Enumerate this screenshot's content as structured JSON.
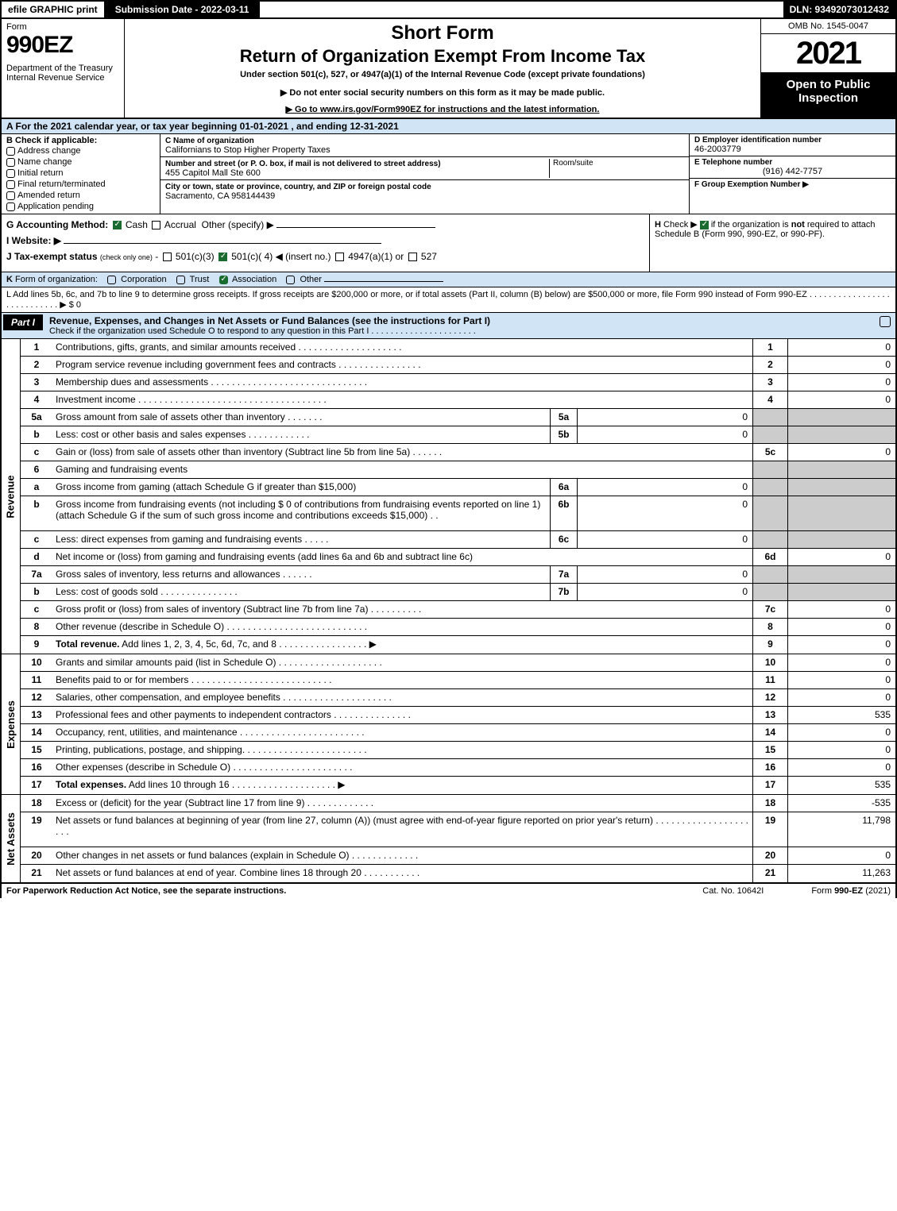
{
  "topbar": {
    "efile": "efile GRAPHIC print",
    "submission": "Submission Date - 2022-03-11",
    "dln": "DLN: 93492073012432"
  },
  "header": {
    "form_word": "Form",
    "form_num": "990EZ",
    "dept": "Department of the Treasury\nInternal Revenue Service",
    "short": "Short Form",
    "return": "Return of Organization Exempt From Income Tax",
    "under": "Under section 501(c), 527, or 4947(a)(1) of the Internal Revenue Code (except private foundations)",
    "donot": "▶ Do not enter social security numbers on this form as it may be made public.",
    "goto": "▶ Go to www.irs.gov/Form990EZ for instructions and the latest information.",
    "omb": "OMB No. 1545-0047",
    "year": "2021",
    "open": "Open to Public Inspection"
  },
  "row_a": "A  For the 2021 calendar year, or tax year beginning 01-01-2021 , and ending 12-31-2021",
  "b": {
    "hdr": "B  Check if applicable:",
    "items": [
      "Address change",
      "Name change",
      "Initial return",
      "Final return/terminated",
      "Amended return",
      "Application pending"
    ]
  },
  "c": {
    "name_label": "C Name of organization",
    "name": "Californians to Stop Higher Property Taxes",
    "street_label": "Number and street (or P. O. box, if mail is not delivered to street address)",
    "street": "455 Capitol Mall Ste 600",
    "room_label": "Room/suite",
    "city_label": "City or town, state or province, country, and ZIP or foreign postal code",
    "city": "Sacramento, CA  958144439"
  },
  "def": {
    "d_label": "D Employer identification number",
    "d_val": "46-2003779",
    "e_label": "E Telephone number",
    "e_val": "(916) 442-7757",
    "f_label": "F Group Exemption Number  ▶"
  },
  "g": {
    "label": "G Accounting Method:",
    "cash": "Cash",
    "accrual": "Accrual",
    "other": "Other (specify) ▶"
  },
  "h": "H  Check ▶         if the organization is not required to attach Schedule B (Form 990, 990-EZ, or 990-PF).",
  "i": "I Website: ▶",
  "j": "J Tax-exempt status (check only one) -  ▢ 501(c)(3)  ☑ 501(c)( 4) ◀ (insert no.)  ▢ 4947(a)(1) or  ▢ 527",
  "k": "K Form of organization:   ▢ Corporation   ▢ Trust   ☑ Association   ▢ Other",
  "l": "L Add lines 5b, 6c, and 7b to line 9 to determine gross receipts. If gross receipts are $200,000 or more, or if total assets (Part II, column (B) below) are $500,000 or more, file Form 990 instead of Form 990-EZ  .  .  .  .  .  .  .  .  .  .  .  .  .  .  .  .  .  .  .  .  .  .  .  .  .  .  .  .  ▶ $ 0",
  "part1": {
    "badge": "Part I",
    "title": "Revenue, Expenses, and Changes in Net Assets or Fund Balances (see the instructions for Part I)",
    "sub": "Check if the organization used Schedule O to respond to any question in this Part I  .  .  .  .  .  .  .  .  .  .  .  .  .  .  .  .  .  .  .  .  .  ."
  },
  "lines_revenue": {
    "side": "Revenue",
    "rows": [
      {
        "n": "1",
        "t": "Contributions, gifts, grants, and similar amounts received  .  .  .  .  .  .  .  .  .  .  .  .  .  .  .  .  .  .  .  .",
        "rn": "1",
        "rv": "0"
      },
      {
        "n": "2",
        "t": "Program service revenue including government fees and contracts  .  .  .  .  .  .  .  .  .  .  .  .  .  .  .  .",
        "rn": "2",
        "rv": "0"
      },
      {
        "n": "3",
        "t": "Membership dues and assessments .  .  .  .  .  .  .  .  .  .  .  .  .  .  .  .  .  .  .  .  .  .  .  .  .  .  .  .  .  .",
        "rn": "3",
        "rv": "0"
      },
      {
        "n": "4",
        "t": "Investment income .  .  .  .  .  .  .  .  .  .  .  .  .  .  .  .  .  .  .  .  .  .  .  .  .  .  .  .  .  .  .  .  .  .  .  .",
        "rn": "4",
        "rv": "0"
      },
      {
        "n": "5a",
        "t": "Gross amount from sale of assets other than inventory  .  .  .  .  .  .  .",
        "mn": "5a",
        "mv": "0",
        "shade": true
      },
      {
        "n": "b",
        "t": "Less: cost or other basis and sales expenses  .  .  .  .  .  .  .  .  .  .  .  .",
        "mn": "5b",
        "mv": "0",
        "shade": true
      },
      {
        "n": "c",
        "t": "Gain or (loss) from sale of assets other than inventory (Subtract line 5b from line 5a)  .  .  .  .  .  .",
        "rn": "5c",
        "rv": "0"
      },
      {
        "n": "6",
        "t": "Gaming and fundraising events",
        "plain": true,
        "shade": true
      },
      {
        "n": "a",
        "t": "Gross income from gaming (attach Schedule G if greater than $15,000)",
        "mn": "6a",
        "mv": "0",
        "shade": true
      },
      {
        "n": "b",
        "t": "Gross income from fundraising events (not including $  0              of contributions from fundraising events reported on line 1) (attach Schedule G if the sum of such gross income and contributions exceeds $15,000)   .  .",
        "mn": "6b",
        "mv": "0",
        "shade": true,
        "tall": true
      },
      {
        "n": "c",
        "t": "Less: direct expenses from gaming and fundraising events  .  .  .  .  .",
        "mn": "6c",
        "mv": "0",
        "shade": true
      },
      {
        "n": "d",
        "t": "Net income or (loss) from gaming and fundraising events (add lines 6a and 6b and subtract line 6c)",
        "rn": "6d",
        "rv": "0"
      },
      {
        "n": "7a",
        "t": "Gross sales of inventory, less returns and allowances  .  .  .  .  .  .",
        "mn": "7a",
        "mv": "0",
        "shade": true
      },
      {
        "n": "b",
        "t": "Less: cost of goods sold        .  .  .  .  .  .  .  .  .  .  .  .  .  .  .",
        "mn": "7b",
        "mv": "0",
        "shade": true
      },
      {
        "n": "c",
        "t": "Gross profit or (loss) from sales of inventory (Subtract line 7b from line 7a)  .  .  .  .  .  .  .  .  .  .",
        "rn": "7c",
        "rv": "0"
      },
      {
        "n": "8",
        "t": "Other revenue (describe in Schedule O) .  .  .  .  .  .  .  .  .  .  .  .  .  .  .  .  .  .  .  .  .  .  .  .  .  .  .",
        "rn": "8",
        "rv": "0"
      },
      {
        "n": "9",
        "t": "Total revenue. Add lines 1, 2, 3, 4, 5c, 6d, 7c, and 8   .  .  .  .  .  .  .  .  .  .  .  .  .  .  .  .  .          ▶",
        "rn": "9",
        "rv": "0",
        "bold": true
      }
    ]
  },
  "lines_expenses": {
    "side": "Expenses",
    "rows": [
      {
        "n": "10",
        "t": "Grants and similar amounts paid (list in Schedule O)  .  .  .  .  .  .  .  .  .  .  .  .  .  .  .  .  .  .  .  .",
        "rn": "10",
        "rv": "0"
      },
      {
        "n": "11",
        "t": "Benefits paid to or for members     .  .  .  .  .  .  .  .  .  .  .  .  .  .  .  .  .  .  .  .  .  .  .  .  .  .  .",
        "rn": "11",
        "rv": "0"
      },
      {
        "n": "12",
        "t": "Salaries, other compensation, and employee benefits .  .  .  .  .  .  .  .  .  .  .  .  .  .  .  .  .  .  .  .  .",
        "rn": "12",
        "rv": "0"
      },
      {
        "n": "13",
        "t": "Professional fees and other payments to independent contractors .  .  .  .  .  .  .  .  .  .  .  .  .  .  .",
        "rn": "13",
        "rv": "535"
      },
      {
        "n": "14",
        "t": "Occupancy, rent, utilities, and maintenance .  .  .  .  .  .  .  .  .  .  .  .  .  .  .  .  .  .  .  .  .  .  .  .",
        "rn": "14",
        "rv": "0"
      },
      {
        "n": "15",
        "t": "Printing, publications, postage, and shipping.  .  .  .  .  .  .  .  .  .  .  .  .  .  .  .  .  .  .  .  .  .  .  .",
        "rn": "15",
        "rv": "0"
      },
      {
        "n": "16",
        "t": "Other expenses (describe in Schedule O)     .  .  .  .  .  .  .  .  .  .  .  .  .  .  .  .  .  .  .  .  .  .  .",
        "rn": "16",
        "rv": "0"
      },
      {
        "n": "17",
        "t": "Total expenses. Add lines 10 through 16     .  .  .  .  .  .  .  .  .  .  .  .  .  .  .  .  .  .  .  .        ▶",
        "rn": "17",
        "rv": "535",
        "bold": true
      }
    ]
  },
  "lines_netassets": {
    "side": "Net Assets",
    "rows": [
      {
        "n": "18",
        "t": "Excess or (deficit) for the year (Subtract line 17 from line 9)        .  .  .  .  .  .  .  .  .  .  .  .  .",
        "rn": "18",
        "rv": "-535"
      },
      {
        "n": "19",
        "t": "Net assets or fund balances at beginning of year (from line 27, column (A)) (must agree with end-of-year figure reported on prior year's return) .  .  .  .  .  .  .  .  .  .  .  .  .  .  .  .  .  .  .  .  .",
        "rn": "19",
        "rv": "11,798",
        "tall": true
      },
      {
        "n": "20",
        "t": "Other changes in net assets or fund balances (explain in Schedule O) .  .  .  .  .  .  .  .  .  .  .  .  .",
        "rn": "20",
        "rv": "0"
      },
      {
        "n": "21",
        "t": "Net assets or fund balances at end of year. Combine lines 18 through 20 .  .  .  .  .  .  .  .  .  .  .",
        "rn": "21",
        "rv": "11,263"
      }
    ]
  },
  "footer": {
    "left": "For Paperwork Reduction Act Notice, see the separate instructions.",
    "mid": "Cat. No. 10642I",
    "rt": "Form 990-EZ (2021)"
  }
}
